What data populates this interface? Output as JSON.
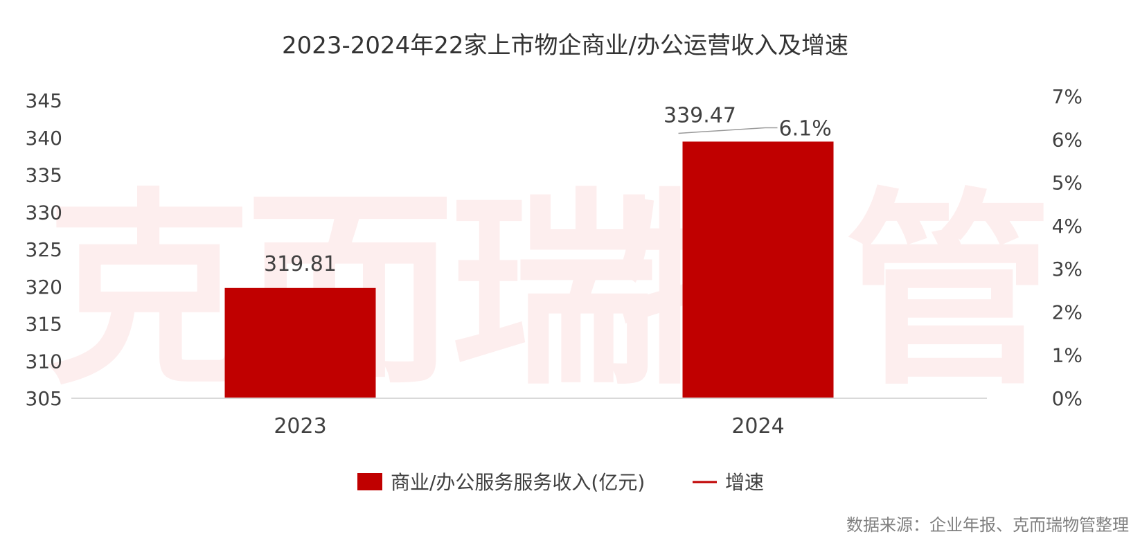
{
  "chart_data": {
    "type": "bar",
    "title": "2023-2024年22家上市物企商业/办公运营收入及增速",
    "categories": [
      "2023",
      "2024"
    ],
    "series": [
      {
        "name": "商业/办公服务服务收入(亿元)",
        "values": [
          319.81,
          339.47
        ],
        "axis": "left",
        "mark": "bar",
        "labels": [
          "319.81",
          "339.47"
        ]
      },
      {
        "name": "增速",
        "values": [
          null,
          6.1
        ],
        "axis": "right",
        "mark": "line",
        "labels": [
          "",
          "6.1%"
        ]
      }
    ],
    "y_left": {
      "min": 305,
      "max": 345,
      "step": 5,
      "ticks": [
        "305",
        "310",
        "315",
        "320",
        "325",
        "330",
        "335",
        "340",
        "345"
      ]
    },
    "y_right": {
      "min": 0,
      "max": 7,
      "step": 1,
      "ticks": [
        "0%",
        "1%",
        "2%",
        "3%",
        "4%",
        "5%",
        "6%",
        "7%"
      ]
    },
    "legend_placement": "bottom-center",
    "grid": false,
    "colors": {
      "bar": "#c00000",
      "line": "#c00000",
      "axis": "#d9d9d9",
      "text": "#404040",
      "source": "#808080",
      "watermark": "#fdeeee"
    }
  },
  "source_note": "数据来源：企业年报、克而瑞物管整理",
  "watermark_text": "克而瑞物管"
}
